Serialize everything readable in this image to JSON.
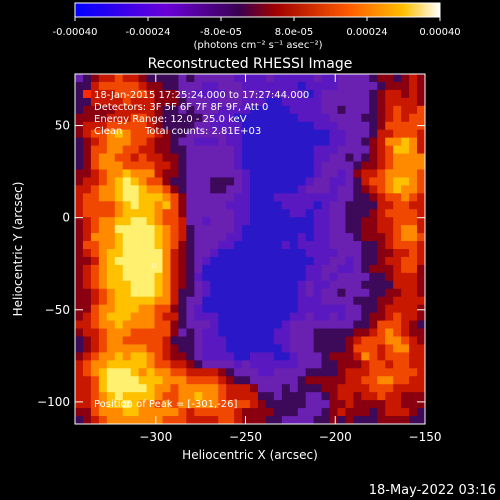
{
  "colorbar": {
    "tick_labels": [
      "-0.00040",
      "-0.00024",
      "-8.0e-05",
      "8.0e-05",
      "0.00024",
      "0.00040"
    ],
    "unit_label": "(photons cm⁻² s⁻¹ asec⁻²)",
    "range": [
      -0.0004,
      0.0004
    ],
    "colors": [
      "#0000ff",
      "#7a00d0",
      "#b00000",
      "#ff5a00",
      "#ffb000",
      "#ffffff"
    ]
  },
  "chart_data": {
    "type": "heatmap",
    "title": "Reconstructed RHESSI Image",
    "xlabel": "Heliocentric X (arcsec)",
    "ylabel": "Heliocentric Y (arcsec)",
    "xlim": [
      -345,
      -150
    ],
    "ylim": [
      -112,
      78
    ],
    "x_ticks": [
      -300,
      -250,
      -200,
      -150
    ],
    "y_ticks": [
      50,
      0,
      -50,
      -100
    ],
    "annotations": {
      "time": "18-Jan-2015 17:25:24.000 to 17:27:44.000",
      "detectors": "Detectors: 3F 5F 6F 7F 8F 9F, Att 0",
      "energy": "Energy Range: 12.0 - 25.0 keV",
      "clean": "Clean",
      "counts": "Total counts: 2.81E+03",
      "peak": "Position of Peak = [-301,-26]"
    },
    "peak_position": [
      -301,
      -26
    ],
    "grid": false,
    "legend": "none"
  },
  "footer": {
    "timestamp": "18-May-2022 03:16"
  }
}
